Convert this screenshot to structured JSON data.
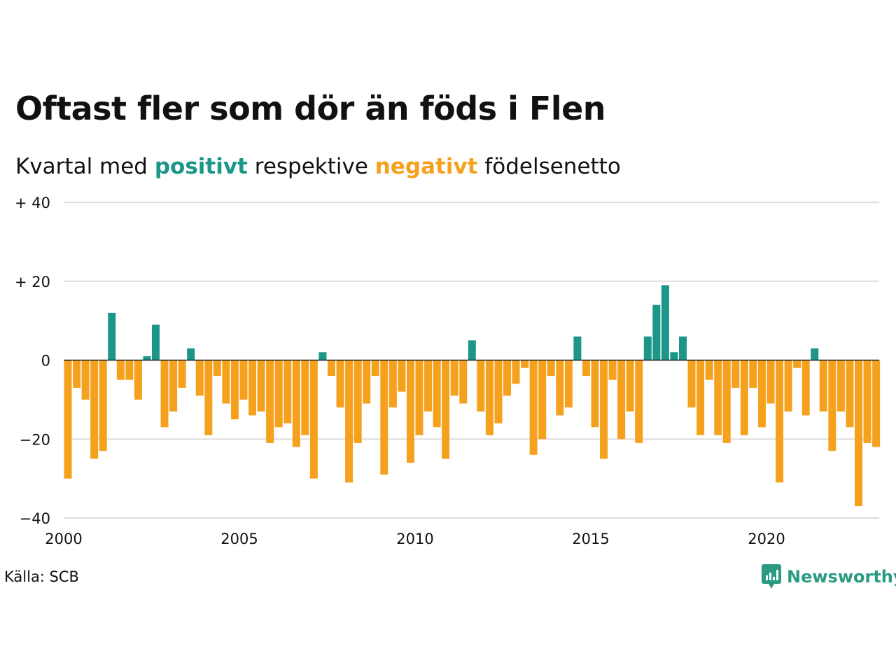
{
  "title": "Oftast fler som dör än föds i Flen",
  "subtitle": {
    "prefix": "Kvartal med",
    "positive_word": "positivt",
    "middle": "respektive",
    "negative_word": "negativt",
    "suffix": "födelsenetto"
  },
  "source": "Källa: SCB",
  "brand": {
    "name": "Newsworthy",
    "icon": "newsworthy-logo-icon"
  },
  "colors": {
    "positive": "#1b9688",
    "negative": "#f5a11e",
    "grid": "#dddddd",
    "axis": "#222222",
    "brand": "#2a9a82"
  },
  "chart_data": {
    "type": "bar",
    "title": "Oftast fler som dör än föds i Flen",
    "x_start_year": 2000,
    "x_ticks": [
      "2000",
      "2005",
      "2010",
      "2015",
      "2020"
    ],
    "y_ticks": [
      "+ 40",
      "+ 20",
      "0",
      "−20",
      "−40"
    ],
    "y_tick_values": [
      40,
      20,
      0,
      -20,
      -40
    ],
    "ylim": [
      -40,
      40
    ],
    "grid": true,
    "values": [
      -30,
      -7,
      -10,
      -25,
      -23,
      12,
      -5,
      -5,
      -10,
      1,
      9,
      -17,
      -13,
      -7,
      3,
      -9,
      -19,
      -4,
      -11,
      -15,
      -10,
      -14,
      -13,
      -21,
      -17,
      -16,
      -22,
      -19,
      -30,
      2,
      -4,
      -12,
      -31,
      -21,
      -11,
      -4,
      -29,
      -12,
      -8,
      -26,
      -19,
      -13,
      -17,
      -25,
      -9,
      -11,
      5,
      -13,
      -19,
      -16,
      -9,
      -6,
      -2,
      -24,
      -20,
      -4,
      -14,
      -12,
      6,
      -4,
      -17,
      -25,
      -5,
      -20,
      -13,
      -21,
      6,
      14,
      19,
      2,
      6,
      -12,
      -19,
      -5,
      -19,
      -21,
      -7,
      -19,
      -7,
      -17,
      -11,
      -31,
      -13,
      -2,
      -14,
      3,
      -13,
      -23,
      -13,
      -17,
      -37,
      -21,
      -22
    ]
  }
}
